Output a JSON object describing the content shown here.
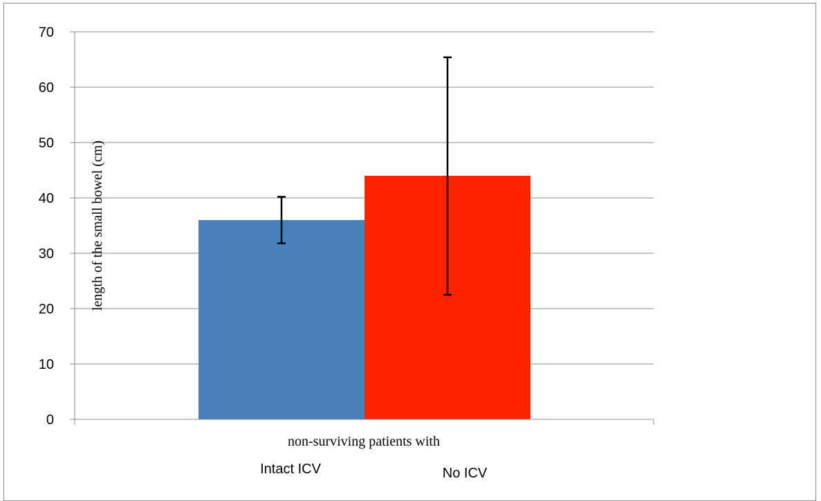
{
  "chart_data": {
    "type": "bar",
    "title": "",
    "xlabel": "non-surviving patients with",
    "ylabel": "length of the small bowel (cm)",
    "categories": [
      "Intact ICV",
      "No ICV"
    ],
    "values": [
      36,
      44
    ],
    "error_bars": [
      {
        "low": 31.8,
        "high": 40.2
      },
      {
        "low": 22.5,
        "high": 65.4
      }
    ],
    "colors": [
      "#4a80bb",
      "#ff2400"
    ],
    "ylim": [
      0,
      70
    ],
    "yticks": [
      0,
      10,
      20,
      30,
      40,
      50,
      60,
      70
    ],
    "grid": true,
    "legend": "none"
  }
}
